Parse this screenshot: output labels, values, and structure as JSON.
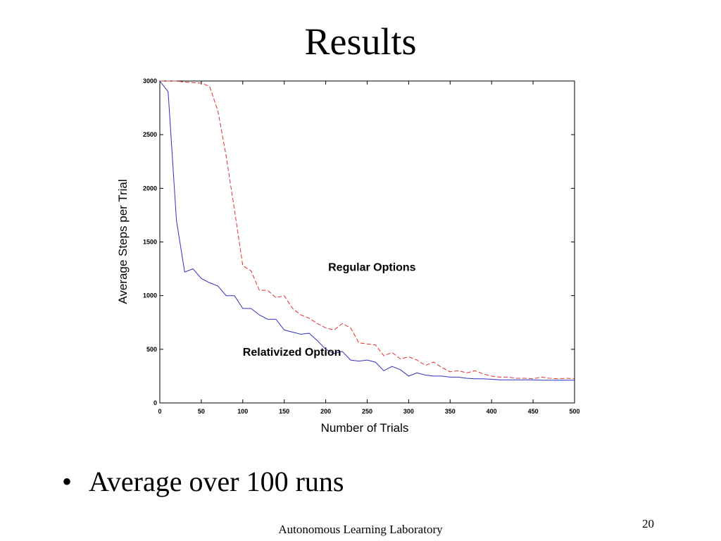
{
  "slide": {
    "title": "Results",
    "bullet_marker": "•",
    "bullet": "Average over 100 runs",
    "footer": "Autonomous Learning Laboratory",
    "page_number": "20"
  },
  "chart_data": {
    "type": "line",
    "xlabel": "Number of Trials",
    "ylabel": "Average Steps per Trial",
    "xlim": [
      0,
      500
    ],
    "ylim": [
      0,
      3000
    ],
    "xticks": [
      0,
      50,
      100,
      150,
      200,
      250,
      300,
      350,
      400,
      450,
      500
    ],
    "yticks": [
      0,
      500,
      1000,
      1500,
      2000,
      2500,
      3000
    ],
    "grid": false,
    "x": [
      0,
      10,
      20,
      30,
      40,
      50,
      60,
      70,
      80,
      90,
      100,
      110,
      120,
      130,
      140,
      150,
      160,
      170,
      180,
      190,
      200,
      210,
      220,
      230,
      240,
      250,
      260,
      270,
      280,
      290,
      300,
      310,
      320,
      330,
      340,
      350,
      360,
      370,
      380,
      390,
      400,
      410,
      420,
      430,
      440,
      450,
      460,
      470,
      480,
      490,
      500
    ],
    "series": [
      {
        "name": "Regular Options",
        "color": "#e03030",
        "dash": true,
        "values": [
          3000,
          3000,
          3000,
          2990,
          2985,
          2980,
          2950,
          2720,
          2300,
          1800,
          1280,
          1230,
          1050,
          1050,
          980,
          1000,
          880,
          820,
          790,
          740,
          700,
          680,
          740,
          700,
          560,
          550,
          540,
          440,
          470,
          410,
          430,
          400,
          350,
          380,
          330,
          290,
          300,
          280,
          300,
          270,
          250,
          240,
          240,
          230,
          230,
          225,
          240,
          230,
          225,
          230,
          225
        ]
      },
      {
        "name": "Relativized Option",
        "color": "#3030c0",
        "dash": false,
        "values": [
          3000,
          2900,
          1700,
          1220,
          1250,
          1160,
          1120,
          1090,
          1000,
          1000,
          880,
          880,
          820,
          780,
          780,
          680,
          660,
          640,
          650,
          580,
          500,
          460,
          480,
          400,
          390,
          400,
          380,
          300,
          340,
          310,
          250,
          280,
          260,
          250,
          250,
          240,
          240,
          230,
          225,
          225,
          220,
          215,
          215,
          215,
          215,
          215,
          212,
          212,
          212,
          212,
          212
        ]
      }
    ],
    "annotations": [
      {
        "text": "Regular Options",
        "x": 203,
        "y": 1230
      },
      {
        "text": "Relativized Option",
        "x": 100,
        "y": 440
      }
    ]
  }
}
